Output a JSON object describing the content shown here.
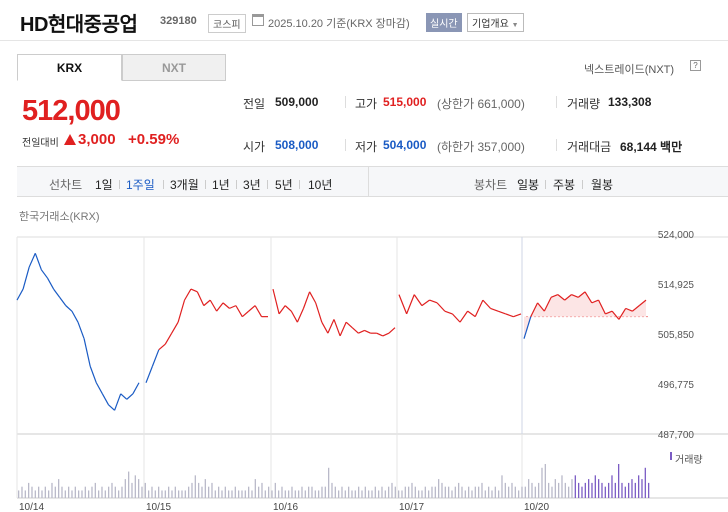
{
  "header": {
    "name": "HD현대중공업",
    "code": "329180",
    "market": "코스피",
    "date": "2025.10.20 기준(KRX 장마감)",
    "realtime": "실시간",
    "company_btn": "기업개요"
  },
  "tabs": [
    {
      "label": "KRX"
    },
    {
      "label": "NXT"
    }
  ],
  "nxt_link": "넥스트레이드(NXT)",
  "price": {
    "current": "512,000",
    "change_label": "전일대비",
    "change": "3,000",
    "change_pct": "+0.59%"
  },
  "quote": {
    "prev_label": "전일",
    "prev": "509,000",
    "high_label": "고가",
    "high": "515,000",
    "upper_limit": "(상한가 661,000)",
    "volume_label": "거래량",
    "volume": "133,308",
    "open_label": "시가",
    "open": "508,000",
    "low_label": "저가",
    "low": "504,000",
    "lower_limit": "(하한가 357,000)",
    "amount_label": "거래대금",
    "amount": "68,144 백만"
  },
  "colors": {
    "up": "#e02020",
    "down": "#1a5bc4",
    "accent": "#8a96b5"
  },
  "period": {
    "line_label": "선차트",
    "line_items": [
      "1일",
      "1주일",
      "3개월",
      "1년",
      "3년",
      "5년",
      "10년"
    ],
    "active": "1주일",
    "candle_label": "봉차트",
    "candle_items": [
      "일봉",
      "주봉",
      "월봉"
    ]
  },
  "chart_caption": "한국거래소(KRX)",
  "volume_legend": "거래량",
  "chart_data": {
    "type": "line",
    "y_ticks": [
      "524,000",
      "514,925",
      "505,850",
      "496,775",
      "487,700"
    ],
    "ylim": [
      487700,
      524000
    ],
    "x_ticks": [
      "10/14",
      "10/15",
      "10/16",
      "10/17",
      "10/20"
    ],
    "prev_close": 509000,
    "series": [
      {
        "session": "10/14",
        "values": [
          512000,
          514000,
          518000,
          520500,
          517500,
          516000,
          514000,
          512500,
          511000,
          510000,
          508000,
          505000,
          500000,
          497000,
          495000,
          493000,
          492000,
          495000,
          494000,
          495000,
          497000
        ]
      },
      {
        "session": "10/15",
        "values": [
          497000,
          500000,
          503000,
          504000,
          506000,
          508000,
          512000,
          514000,
          513500,
          511000,
          512000,
          510000,
          511500,
          510500,
          511000,
          509000,
          510000,
          511000,
          509000,
          509000
        ]
      },
      {
        "session": "10/16",
        "values": [
          514000,
          509500,
          511000,
          510000,
          508000,
          510500,
          513500,
          511500,
          508000,
          506000,
          508500,
          505500,
          508000,
          507000,
          506000,
          506500,
          506000,
          506000,
          505500,
          506000,
          507000
        ]
      },
      {
        "session": "10/17",
        "values": [
          513000,
          509500,
          513000,
          511000,
          512000,
          511500,
          510000,
          509500,
          508000,
          510000,
          509000,
          512000,
          510500,
          510000,
          509500,
          509000,
          509500
        ]
      },
      {
        "session": "10/20",
        "values": [
          505000,
          509000,
          511500,
          510000,
          512500,
          513000,
          512000,
          513000,
          512500,
          513500,
          511500,
          512000,
          509500,
          510000,
          508500,
          510500,
          510000,
          511000,
          512000
        ]
      }
    ],
    "volume": [
      2,
      3,
      2,
      4,
      3,
      2,
      3,
      2,
      3,
      2,
      4,
      3,
      5,
      3,
      2,
      3,
      2,
      3,
      2,
      2,
      3,
      2,
      3,
      4,
      2,
      3,
      2,
      3,
      4,
      3,
      2,
      3,
      5,
      7,
      4,
      6,
      5,
      3,
      4,
      2,
      3,
      2,
      3,
      2,
      2,
      3,
      2,
      3,
      2,
      2,
      2,
      3,
      4,
      6,
      4,
      3,
      5,
      3,
      4,
      2,
      3,
      2,
      3,
      2,
      2,
      3,
      2,
      2,
      2,
      3,
      2,
      5,
      3,
      4,
      2,
      3,
      2,
      4,
      2,
      3,
      2,
      2,
      3,
      2,
      2,
      3,
      2,
      3,
      3,
      2,
      2,
      3,
      3,
      8,
      4,
      3,
      2,
      3,
      2,
      3,
      2,
      2,
      3,
      2,
      3,
      2,
      2,
      3,
      2,
      3,
      2,
      3,
      4,
      3,
      2,
      2,
      3,
      3,
      4,
      3,
      2,
      2,
      3,
      2,
      3,
      3,
      5,
      4,
      3,
      3,
      2,
      3,
      4,
      3,
      2,
      3,
      2,
      3,
      3,
      4,
      2,
      3,
      2,
      3,
      2,
      6,
      4,
      3,
      4,
      3,
      2,
      3,
      3,
      5,
      4,
      3,
      4,
      8,
      9,
      4,
      3,
      5,
      4,
      6,
      4,
      3,
      5,
      6,
      4,
      3,
      4,
      5,
      4,
      6,
      5,
      4,
      3,
      4,
      6,
      4,
      9,
      4,
      3,
      4,
      5,
      4,
      6,
      5,
      8,
      4
    ]
  }
}
